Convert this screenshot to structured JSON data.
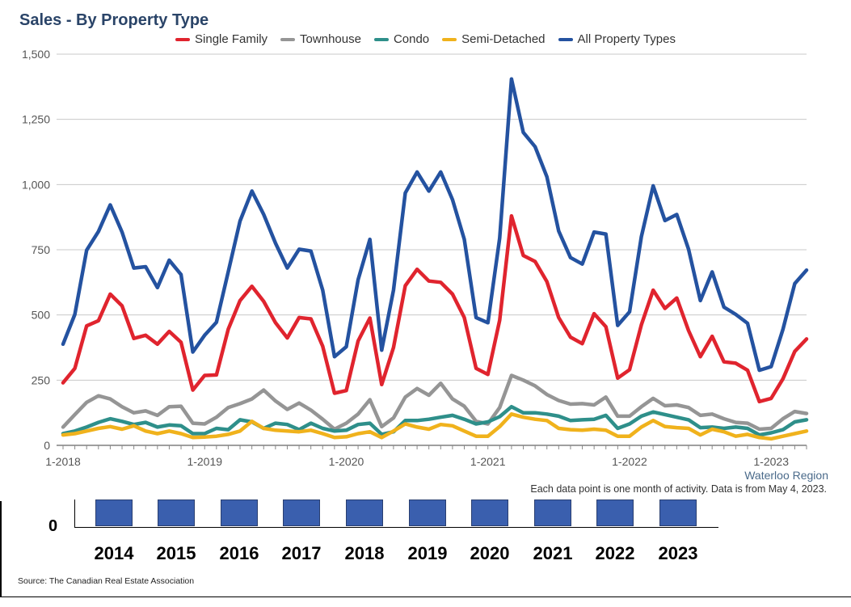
{
  "title": "Sales - By Property Type",
  "legend": [
    {
      "label": "Single Family",
      "color": "#e0242e"
    },
    {
      "label": "Townhouse",
      "color": "#959595"
    },
    {
      "label": "Condo",
      "color": "#2e8f8a"
    },
    {
      "label": "Semi-Detached",
      "color": "#f0b21c"
    },
    {
      "label": "All Property Types",
      "color": "#2452a0"
    }
  ],
  "region": "Waterloo Region",
  "note": "Each data point is one month of activity. Data is from May 4, 2023.",
  "source": "Source: The Canadian Real Estate Association",
  "year_selector": {
    "zero_label": "0",
    "years": [
      "2014",
      "2015",
      "2016",
      "2017",
      "2018",
      "2019",
      "2020",
      "2021",
      "2022",
      "2023"
    ]
  },
  "chart_data": {
    "type": "line",
    "title": "Sales - By Property Type",
    "xlabel": "",
    "ylabel": "",
    "ylim": [
      0,
      1500
    ],
    "yticks": [
      0,
      250,
      500,
      750,
      1000,
      1250,
      1500
    ],
    "ytick_labels": [
      "0",
      "250",
      "500",
      "750",
      "1,000",
      "1,250",
      "1,500"
    ],
    "xtick_labels": [
      "1-2018",
      "1-2019",
      "1-2020",
      "1-2021",
      "1-2022",
      "1-2023"
    ],
    "xtick_index": [
      0,
      12,
      24,
      36,
      48,
      60
    ],
    "start_month": "1-2018",
    "n_points": 64,
    "series": [
      {
        "name": "Single Family",
        "color": "#e0242e",
        "values": [
          240,
          295,
          458,
          478,
          580,
          535,
          410,
          422,
          388,
          437,
          395,
          212,
          268,
          270,
          445,
          555,
          610,
          552,
          470,
          412,
          490,
          485,
          380,
          200,
          210,
          400,
          488,
          233,
          375,
          612,
          675,
          630,
          625,
          580,
          490,
          295,
          272,
          480,
          880,
          728,
          705,
          628,
          490,
          415,
          390,
          505,
          455,
          258,
          290,
          462,
          595,
          525,
          565,
          440,
          340,
          418,
          320,
          315,
          288,
          168,
          180,
          255,
          360,
          408
        ]
      },
      {
        "name": "Townhouse",
        "color": "#959595",
        "values": [
          70,
          118,
          165,
          190,
          178,
          148,
          125,
          132,
          115,
          148,
          150,
          85,
          82,
          108,
          145,
          160,
          178,
          212,
          170,
          138,
          162,
          135,
          100,
          62,
          85,
          120,
          175,
          72,
          105,
          185,
          218,
          192,
          238,
          178,
          150,
          92,
          82,
          145,
          268,
          250,
          228,
          195,
          172,
          158,
          160,
          155,
          185,
          112,
          112,
          148,
          180,
          152,
          155,
          145,
          115,
          120,
          102,
          88,
          85,
          62,
          65,
          102,
          130,
          122
        ]
      },
      {
        "name": "Condo",
        "color": "#2e8f8a",
        "values": [
          45,
          55,
          70,
          88,
          102,
          92,
          80,
          88,
          70,
          78,
          75,
          45,
          45,
          65,
          60,
          98,
          90,
          65,
          85,
          80,
          60,
          85,
          65,
          55,
          58,
          80,
          85,
          42,
          52,
          95,
          95,
          100,
          108,
          115,
          100,
          82,
          90,
          110,
          148,
          125,
          125,
          120,
          112,
          95,
          98,
          100,
          115,
          65,
          82,
          112,
          128,
          118,
          108,
          98,
          68,
          70,
          65,
          70,
          65,
          40,
          48,
          60,
          90,
          98
        ]
      },
      {
        "name": "Semi-Detached",
        "color": "#f0b21c",
        "values": [
          40,
          45,
          55,
          65,
          72,
          62,
          75,
          55,
          45,
          55,
          45,
          30,
          32,
          35,
          42,
          55,
          92,
          65,
          58,
          55,
          52,
          58,
          45,
          30,
          33,
          45,
          52,
          30,
          55,
          82,
          70,
          62,
          80,
          75,
          55,
          35,
          35,
          72,
          120,
          108,
          100,
          95,
          65,
          60,
          58,
          62,
          58,
          35,
          35,
          70,
          95,
          72,
          68,
          65,
          40,
          62,
          52,
          35,
          42,
          30,
          25,
          35,
          45,
          55
        ]
      },
      {
        "name": "All Property Types",
        "color": "#2452a0",
        "values": [
          388,
          502,
          748,
          820,
          922,
          818,
          680,
          685,
          605,
          710,
          655,
          358,
          422,
          472,
          665,
          860,
          975,
          885,
          775,
          680,
          752,
          745,
          595,
          340,
          378,
          635,
          790,
          365,
          595,
          968,
          1048,
          975,
          1048,
          942,
          790,
          490,
          470,
          795,
          1405,
          1200,
          1145,
          1030,
          822,
          720,
          695,
          818,
          810,
          460,
          512,
          800,
          995,
          862,
          885,
          752,
          555,
          665,
          530,
          502,
          468,
          288,
          302,
          445,
          620,
          672
        ]
      }
    ]
  }
}
